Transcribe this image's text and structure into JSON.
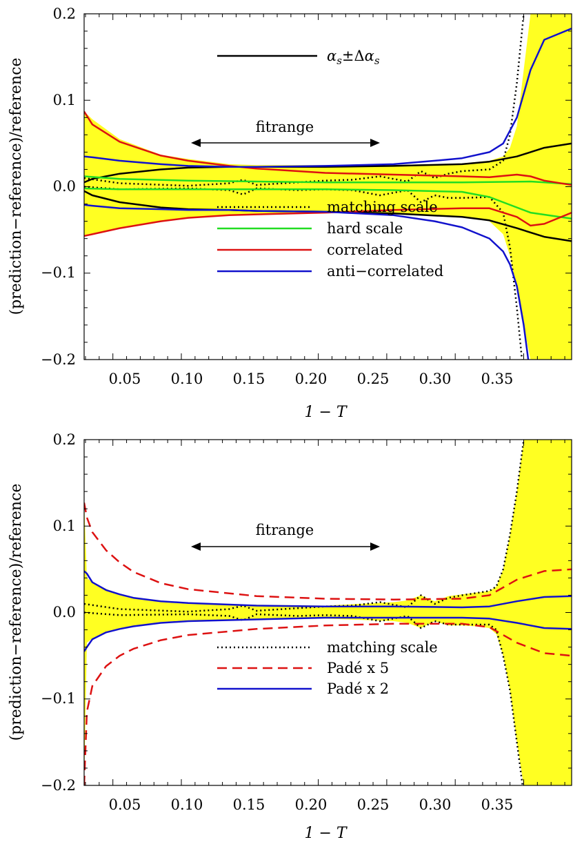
{
  "chart_data": [
    {
      "type": "line",
      "xlabel": "1 − T",
      "ylabel": "(prediction−reference)/reference",
      "xlim": [
        0.024,
        0.38
      ],
      "ylim": [
        -0.2,
        0.2
      ],
      "xticks": [
        "0.05",
        "0.10",
        "0.15",
        "0.20",
        "0.25",
        "0.30",
        "0.35"
      ],
      "yticks": [
        "0.2",
        "0.1",
        "0.0",
        "−0.1",
        "−0.2"
      ],
      "grid": false,
      "annotation": "fitrange",
      "fitrange": [
        0.1,
        0.24
      ],
      "legend_top": "αs ± Δαs",
      "legend_top_parts": {
        "a": "α",
        "s": "s",
        "pm": "±Δ"
      },
      "legend_placement": "bottom-center",
      "legend": [
        {
          "label": "matching scale",
          "color": "#000000",
          "style": "dotted"
        },
        {
          "label": "hard scale",
          "color": "#22dd22",
          "style": "solid"
        },
        {
          "label": "correlated",
          "color": "#dd1111",
          "style": "solid"
        },
        {
          "label": "anti−correlated",
          "color": "#1111cc",
          "style": "solid"
        }
      ],
      "band": {
        "color": "#ffff22",
        "x": [
          0.024,
          0.03,
          0.05,
          0.08,
          0.1,
          0.13,
          0.15,
          0.2,
          0.25,
          0.3,
          0.32,
          0.33,
          0.335,
          0.34,
          0.35,
          0.38
        ],
        "upper": [
          0.087,
          0.078,
          0.055,
          0.037,
          0.032,
          0.026,
          0.025,
          0.025,
          0.025,
          0.027,
          0.03,
          0.035,
          0.045,
          0.07,
          0.2,
          0.2
        ],
        "lower": [
          -0.057,
          -0.055,
          -0.048,
          -0.04,
          -0.036,
          -0.033,
          -0.032,
          -0.03,
          -0.03,
          -0.035,
          -0.04,
          -0.055,
          -0.08,
          -0.12,
          -0.2,
          -0.2
        ]
      },
      "series": [
        {
          "label": "αs upper",
          "color": "#000000",
          "style": "solid",
          "x": [
            0.024,
            0.03,
            0.05,
            0.08,
            0.1,
            0.13,
            0.15,
            0.2,
            0.25,
            0.3,
            0.32,
            0.34,
            0.36,
            0.38
          ],
          "y": [
            0.005,
            0.009,
            0.015,
            0.02,
            0.022,
            0.023,
            0.023,
            0.023,
            0.024,
            0.026,
            0.029,
            0.035,
            0.045,
            0.05
          ]
        },
        {
          "label": "αs lower",
          "color": "#000000",
          "style": "solid",
          "x": [
            0.024,
            0.03,
            0.05,
            0.08,
            0.1,
            0.13,
            0.15,
            0.2,
            0.25,
            0.3,
            0.32,
            0.34,
            0.36,
            0.38
          ],
          "y": [
            -0.005,
            -0.01,
            -0.018,
            -0.024,
            -0.026,
            -0.027,
            -0.028,
            -0.029,
            -0.031,
            -0.035,
            -0.039,
            -0.048,
            -0.058,
            -0.063
          ]
        },
        {
          "label": "matching scale +",
          "color": "#000000",
          "style": "dotted",
          "x": [
            0.024,
            0.05,
            0.1,
            0.13,
            0.14,
            0.15,
            0.18,
            0.2,
            0.22,
            0.24,
            0.26,
            0.27,
            0.28,
            0.29,
            0.3,
            0.32,
            0.33,
            0.335,
            0.34,
            0.345,
            0.35
          ],
          "y": [
            0.01,
            0.004,
            0.001,
            0.004,
            0.008,
            0.002,
            0.005,
            0.007,
            0.008,
            0.012,
            0.006,
            0.018,
            0.01,
            0.015,
            0.018,
            0.02,
            0.03,
            0.06,
            0.12,
            0.2,
            0.25
          ]
        },
        {
          "label": "matching scale −",
          "color": "#000000",
          "style": "dotted",
          "x": [
            0.024,
            0.05,
            0.1,
            0.13,
            0.14,
            0.15,
            0.18,
            0.2,
            0.22,
            0.24,
            0.26,
            0.27,
            0.28,
            0.29,
            0.3,
            0.32,
            0.33,
            0.335,
            0.34,
            0.345,
            0.35
          ],
          "y": [
            0.0,
            -0.003,
            -0.002,
            -0.004,
            -0.009,
            -0.002,
            -0.004,
            -0.003,
            -0.004,
            -0.01,
            -0.004,
            -0.018,
            -0.01,
            -0.013,
            -0.013,
            -0.012,
            -0.03,
            -0.07,
            -0.14,
            -0.22,
            -0.25
          ]
        },
        {
          "label": "hard scale +",
          "color": "#22dd22",
          "style": "solid",
          "x": [
            0.024,
            0.05,
            0.1,
            0.15,
            0.2,
            0.25,
            0.3,
            0.35,
            0.38
          ],
          "y": [
            0.012,
            0.009,
            0.007,
            0.006,
            0.005,
            0.005,
            0.005,
            0.006,
            0.003
          ]
        },
        {
          "label": "hard scale −",
          "color": "#22dd22",
          "style": "solid",
          "x": [
            0.024,
            0.05,
            0.1,
            0.15,
            0.2,
            0.25,
            0.3,
            0.32,
            0.35,
            0.38
          ],
          "y": [
            -0.002,
            -0.003,
            -0.003,
            -0.003,
            -0.003,
            -0.004,
            -0.006,
            -0.012,
            -0.03,
            -0.037
          ]
        },
        {
          "label": "correlated +",
          "color": "#dd1111",
          "style": "solid",
          "x": [
            0.024,
            0.03,
            0.05,
            0.08,
            0.1,
            0.13,
            0.15,
            0.2,
            0.25,
            0.3,
            0.32,
            0.34,
            0.35,
            0.36,
            0.38
          ],
          "y": [
            0.087,
            0.072,
            0.052,
            0.036,
            0.03,
            0.024,
            0.021,
            0.016,
            0.014,
            0.012,
            0.011,
            0.014,
            0.012,
            0.007,
            0.002
          ]
        },
        {
          "label": "correlated −",
          "color": "#dd1111",
          "style": "solid",
          "x": [
            0.024,
            0.03,
            0.05,
            0.08,
            0.1,
            0.13,
            0.15,
            0.2,
            0.25,
            0.3,
            0.32,
            0.34,
            0.35,
            0.36,
            0.38
          ],
          "y": [
            -0.057,
            -0.055,
            -0.048,
            -0.04,
            -0.036,
            -0.033,
            -0.032,
            -0.03,
            -0.027,
            -0.025,
            -0.025,
            -0.035,
            -0.045,
            -0.043,
            -0.03
          ]
        },
        {
          "label": "anti−correlated +",
          "color": "#1111cc",
          "style": "solid",
          "x": [
            0.024,
            0.03,
            0.05,
            0.08,
            0.1,
            0.13,
            0.15,
            0.2,
            0.25,
            0.28,
            0.3,
            0.32,
            0.33,
            0.34,
            0.35,
            0.36,
            0.38
          ],
          "y": [
            0.035,
            0.034,
            0.03,
            0.026,
            0.024,
            0.023,
            0.023,
            0.024,
            0.026,
            0.03,
            0.033,
            0.04,
            0.05,
            0.08,
            0.135,
            0.17,
            0.183
          ]
        },
        {
          "label": "anti−correlated −",
          "color": "#1111cc",
          "style": "solid",
          "x": [
            0.024,
            0.03,
            0.05,
            0.08,
            0.1,
            0.13,
            0.15,
            0.2,
            0.25,
            0.28,
            0.3,
            0.32,
            0.33,
            0.335,
            0.34,
            0.345,
            0.35
          ],
          "y": [
            -0.021,
            -0.022,
            -0.025,
            -0.026,
            -0.027,
            -0.027,
            -0.028,
            -0.029,
            -0.033,
            -0.04,
            -0.047,
            -0.06,
            -0.075,
            -0.09,
            -0.115,
            -0.16,
            -0.22
          ]
        }
      ]
    },
    {
      "type": "line",
      "xlabel": "1 − T",
      "ylabel": "(prediction−reference)/reference",
      "xlim": [
        0.024,
        0.38
      ],
      "ylim": [
        -0.2,
        0.2
      ],
      "xticks": [
        "0.05",
        "0.10",
        "0.15",
        "0.20",
        "0.25",
        "0.30",
        "0.35"
      ],
      "yticks": [
        "0.2",
        "0.1",
        "0.0",
        "−0.1",
        "−0.2"
      ],
      "grid": false,
      "annotation": "fitrange",
      "fitrange": [
        0.1,
        0.24
      ],
      "legend_placement": "bottom-center",
      "legend": [
        {
          "label": "matching scale",
          "color": "#000000",
          "style": "dotted"
        },
        {
          "label": "Padé x 5",
          "color": "#dd1111",
          "style": "dashed"
        },
        {
          "label": "Padé x 2",
          "color": "#1111cc",
          "style": "solid"
        }
      ],
      "band": {
        "color": "#ffff22",
        "x": [
          0.024,
          0.026,
          0.03,
          0.05,
          0.08,
          0.1,
          0.15,
          0.2,
          0.25,
          0.26,
          0.27,
          0.28,
          0.29,
          0.3,
          0.31,
          0.32,
          0.325,
          0.33,
          0.335,
          0.34,
          0.345,
          0.35,
          0.38
        ],
        "upper": [
          0.13,
          0.04,
          0.035,
          0.02,
          0.012,
          0.01,
          0.009,
          0.008,
          0.012,
          0.014,
          0.02,
          0.013,
          0.019,
          0.021,
          0.023,
          0.025,
          0.03,
          0.05,
          0.09,
          0.14,
          0.2,
          0.2,
          0.2
        ],
        "lower": [
          -0.2,
          -0.035,
          -0.03,
          -0.018,
          -0.011,
          -0.009,
          -0.008,
          -0.007,
          -0.01,
          -0.012,
          -0.018,
          -0.01,
          -0.015,
          -0.015,
          -0.016,
          -0.018,
          -0.025,
          -0.05,
          -0.09,
          -0.15,
          -0.2,
          -0.2,
          -0.2
        ]
      },
      "series": [
        {
          "label": "matching scale +",
          "color": "#000000",
          "style": "dotted",
          "x": [
            0.024,
            0.05,
            0.1,
            0.13,
            0.14,
            0.15,
            0.18,
            0.2,
            0.22,
            0.24,
            0.26,
            0.27,
            0.28,
            0.29,
            0.3,
            0.32,
            0.325,
            0.33,
            0.335,
            0.34,
            0.345,
            0.35
          ],
          "y": [
            0.01,
            0.004,
            0.001,
            0.004,
            0.008,
            0.002,
            0.005,
            0.007,
            0.008,
            0.012,
            0.006,
            0.02,
            0.01,
            0.017,
            0.02,
            0.025,
            0.03,
            0.05,
            0.09,
            0.14,
            0.2,
            0.25
          ]
        },
        {
          "label": "matching scale −",
          "color": "#000000",
          "style": "dotted",
          "x": [
            0.024,
            0.05,
            0.1,
            0.13,
            0.14,
            0.15,
            0.18,
            0.2,
            0.22,
            0.24,
            0.26,
            0.27,
            0.28,
            0.29,
            0.3,
            0.32,
            0.325,
            0.33,
            0.335,
            0.34,
            0.345,
            0.35
          ],
          "y": [
            0.0,
            -0.003,
            -0.002,
            -0.004,
            -0.009,
            -0.002,
            -0.004,
            -0.003,
            -0.004,
            -0.01,
            -0.004,
            -0.018,
            -0.01,
            -0.014,
            -0.014,
            -0.014,
            -0.02,
            -0.05,
            -0.09,
            -0.15,
            -0.21,
            -0.25
          ]
        },
        {
          "label": "Padé x 5 +",
          "color": "#dd1111",
          "style": "dashed",
          "x": [
            0.024,
            0.026,
            0.03,
            0.04,
            0.05,
            0.06,
            0.08,
            0.1,
            0.15,
            0.2,
            0.25,
            0.3,
            0.32,
            0.34,
            0.36,
            0.38
          ],
          "y": [
            0.127,
            0.11,
            0.093,
            0.072,
            0.058,
            0.047,
            0.034,
            0.027,
            0.019,
            0.016,
            0.015,
            0.016,
            0.02,
            0.038,
            0.048,
            0.05
          ]
        },
        {
          "label": "Padé x 5 −",
          "color": "#dd1111",
          "style": "dashed",
          "x": [
            0.024,
            0.026,
            0.03,
            0.04,
            0.05,
            0.06,
            0.08,
            0.1,
            0.15,
            0.2,
            0.25,
            0.3,
            0.32,
            0.34,
            0.36,
            0.38
          ],
          "y": [
            -0.2,
            -0.115,
            -0.085,
            -0.062,
            -0.05,
            -0.042,
            -0.032,
            -0.026,
            -0.019,
            -0.015,
            -0.013,
            -0.013,
            -0.017,
            -0.035,
            -0.047,
            -0.05
          ]
        },
        {
          "label": "Padé x 2 +",
          "color": "#1111cc",
          "style": "solid",
          "x": [
            0.024,
            0.026,
            0.03,
            0.04,
            0.05,
            0.06,
            0.08,
            0.1,
            0.15,
            0.2,
            0.25,
            0.3,
            0.32,
            0.34,
            0.36,
            0.38
          ],
          "y": [
            0.048,
            0.045,
            0.035,
            0.026,
            0.021,
            0.017,
            0.013,
            0.011,
            0.008,
            0.007,
            0.007,
            0.006,
            0.007,
            0.013,
            0.018,
            0.019
          ]
        },
        {
          "label": "Padé x 2 −",
          "color": "#1111cc",
          "style": "solid",
          "x": [
            0.024,
            0.026,
            0.03,
            0.04,
            0.05,
            0.06,
            0.08,
            0.1,
            0.15,
            0.2,
            0.25,
            0.3,
            0.32,
            0.34,
            0.36,
            0.38
          ],
          "y": [
            -0.045,
            -0.04,
            -0.031,
            -0.023,
            -0.019,
            -0.016,
            -0.012,
            -0.01,
            -0.008,
            -0.006,
            -0.006,
            -0.006,
            -0.007,
            -0.012,
            -0.018,
            -0.019
          ]
        }
      ]
    }
  ]
}
